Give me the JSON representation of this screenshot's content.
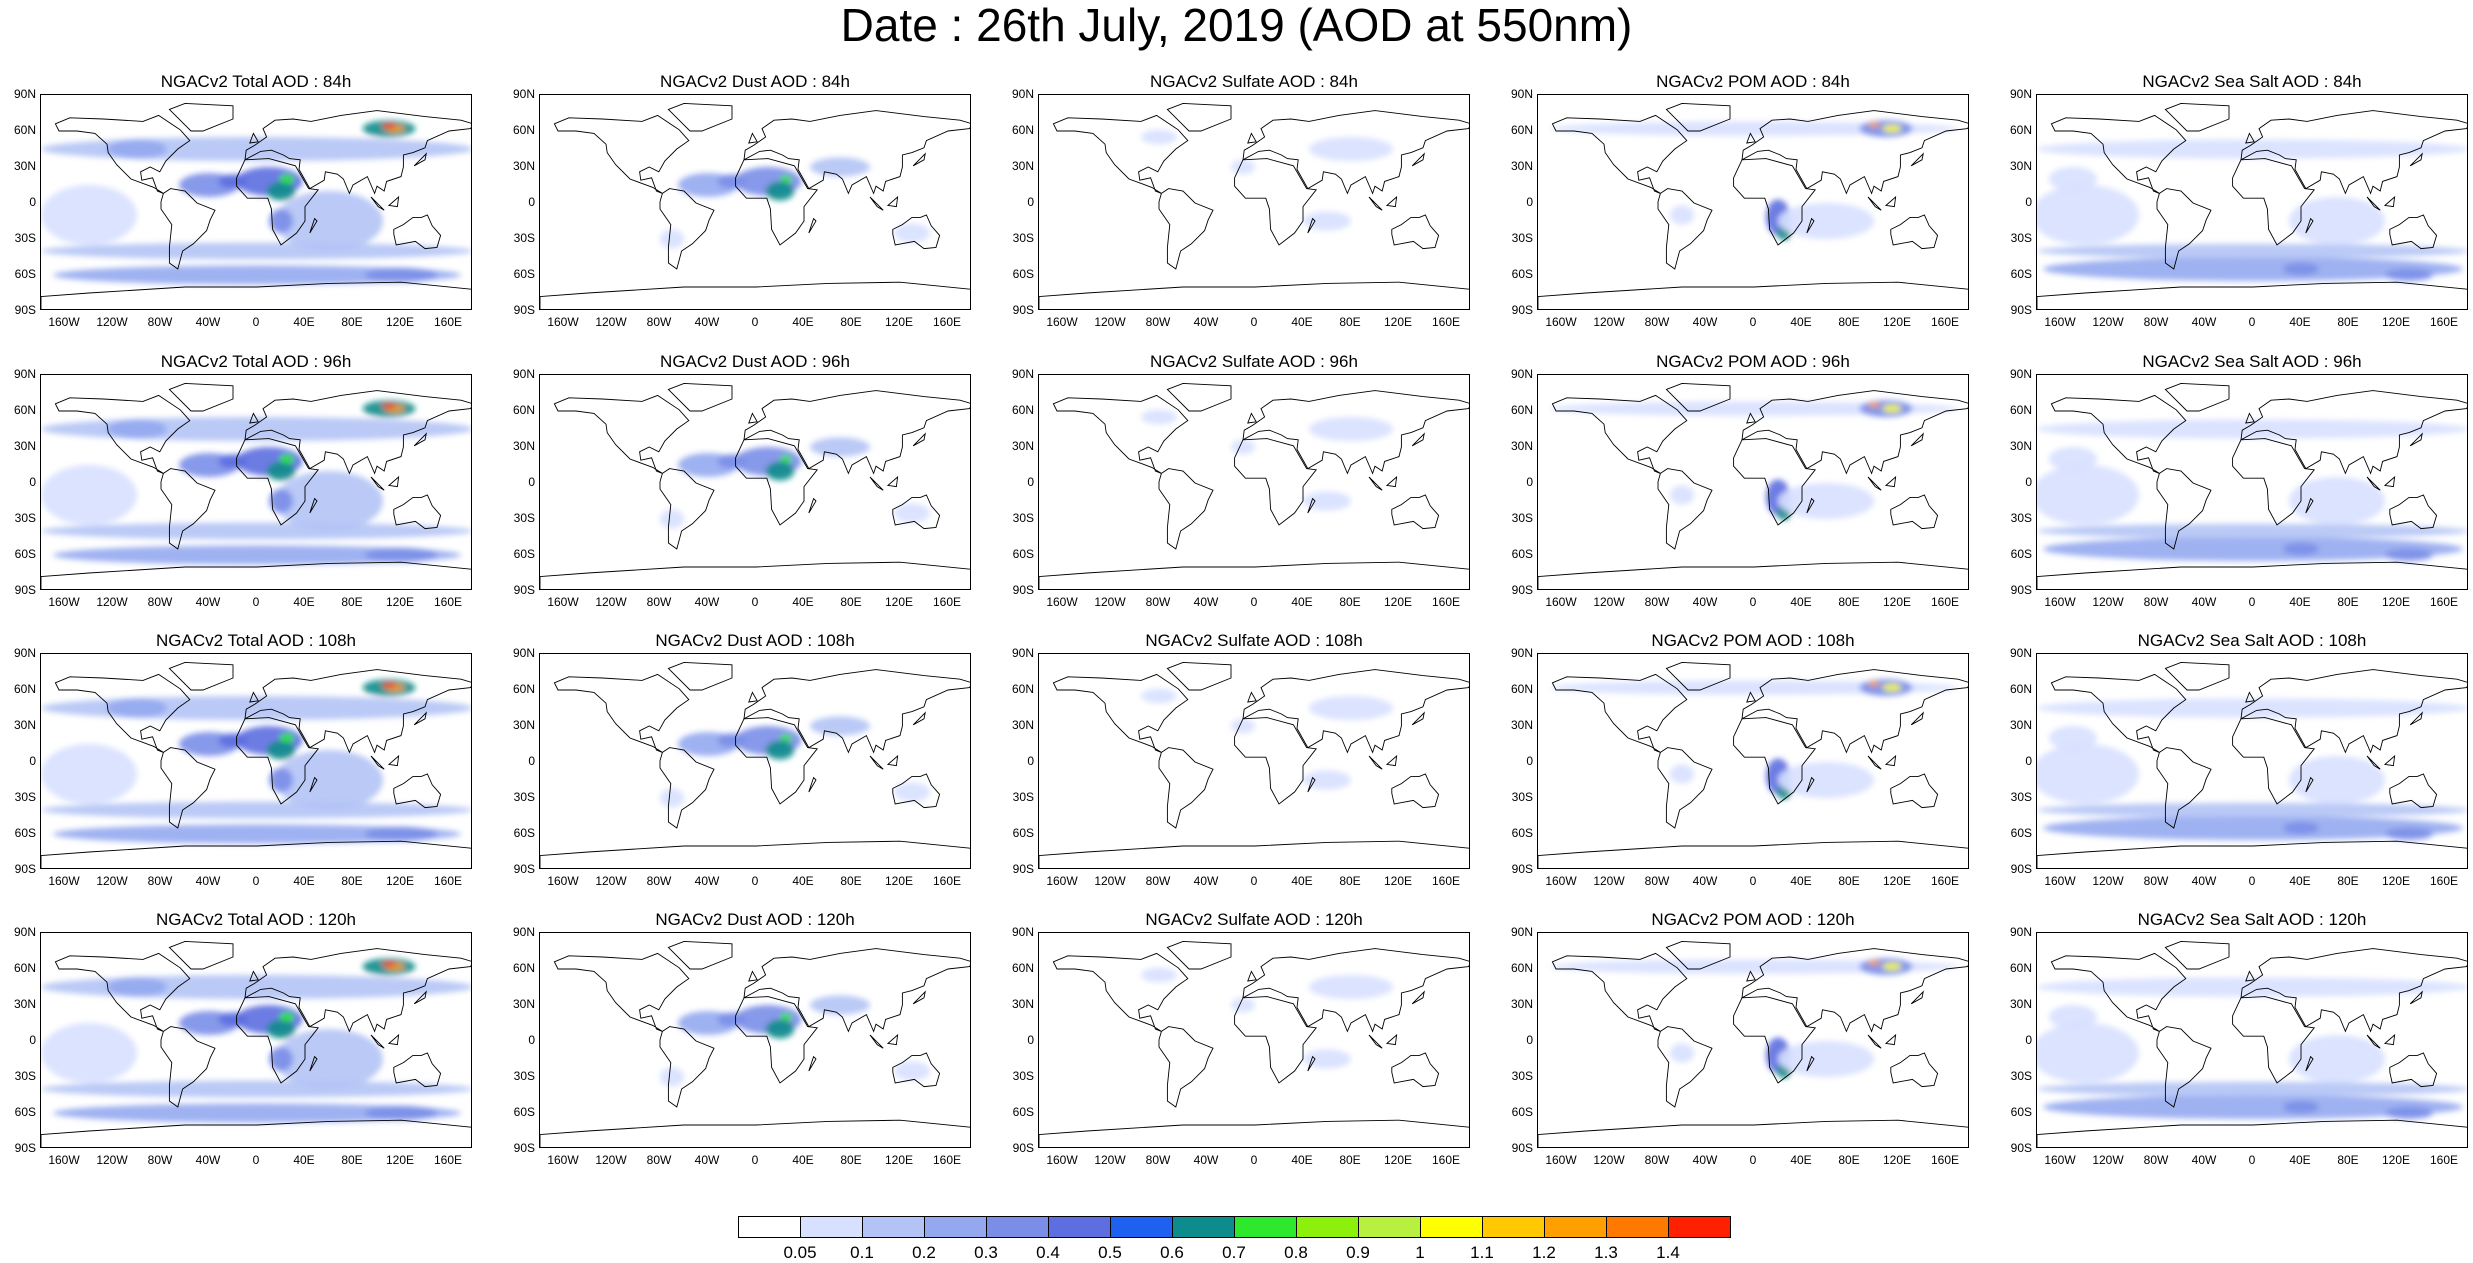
{
  "title": "Date : 26th July, 2019 (AOD at 550nm)",
  "lat_ticks": [
    "90N",
    "60N",
    "30N",
    "0",
    "30S",
    "60S",
    "90S"
  ],
  "lon_ticks": [
    "160W",
    "120W",
    "80W",
    "40W",
    "0",
    "40E",
    "80E",
    "120E",
    "160E"
  ],
  "panels": [
    [
      {
        "title": "NGACv2 Total AOD : 84h",
        "species": "total"
      },
      {
        "title": "NGACv2 Dust AOD : 84h",
        "species": "dust"
      },
      {
        "title": "NGACv2 Sulfate AOD : 84h",
        "species": "sulfate"
      },
      {
        "title": "NGACv2 POM AOD : 84h",
        "species": "pom"
      },
      {
        "title": "NGACv2 Sea Salt AOD : 84h",
        "species": "seasalt"
      }
    ],
    [
      {
        "title": "NGACv2 Total AOD : 96h",
        "species": "total"
      },
      {
        "title": "NGACv2 Dust AOD : 96h",
        "species": "dust"
      },
      {
        "title": "NGACv2 Sulfate AOD : 96h",
        "species": "sulfate"
      },
      {
        "title": "NGACv2 POM AOD : 96h",
        "species": "pom"
      },
      {
        "title": "NGACv2 Sea Salt AOD : 96h",
        "species": "seasalt"
      }
    ],
    [
      {
        "title": "NGACv2 Total AOD : 108h",
        "species": "total"
      },
      {
        "title": "NGACv2 Dust AOD : 108h",
        "species": "dust"
      },
      {
        "title": "NGACv2 Sulfate AOD : 108h",
        "species": "sulfate"
      },
      {
        "title": "NGACv2 POM AOD : 108h",
        "species": "pom"
      },
      {
        "title": "NGACv2 Sea Salt AOD : 108h",
        "species": "seasalt"
      }
    ],
    [
      {
        "title": "NGACv2 Total AOD : 120h",
        "species": "total"
      },
      {
        "title": "NGACv2 Dust AOD : 120h",
        "species": "dust"
      },
      {
        "title": "NGACv2 Sulfate AOD : 120h",
        "species": "sulfate"
      },
      {
        "title": "NGACv2 POM AOD : 120h",
        "species": "pom"
      },
      {
        "title": "NGACv2 Sea Salt  AOD : 120h",
        "species": "seasalt"
      }
    ]
  ],
  "colorbar": {
    "labels": [
      "0.05",
      "0.1",
      "0.2",
      "0.3",
      "0.4",
      "0.5",
      "0.6",
      "0.7",
      "0.8",
      "0.9",
      "1",
      "1.1",
      "1.2",
      "1.3",
      "1.4"
    ],
    "colors": [
      "#ffffff",
      "#d7e0ff",
      "#b3c3f5",
      "#94a8f0",
      "#7a8ee8",
      "#5c6ee0",
      "#1e60f0",
      "#0c8c8c",
      "#2ee82e",
      "#8cf00c",
      "#b8f040",
      "#ffff00",
      "#ffc800",
      "#ffa000",
      "#ff7800",
      "#ff2000"
    ]
  }
}
